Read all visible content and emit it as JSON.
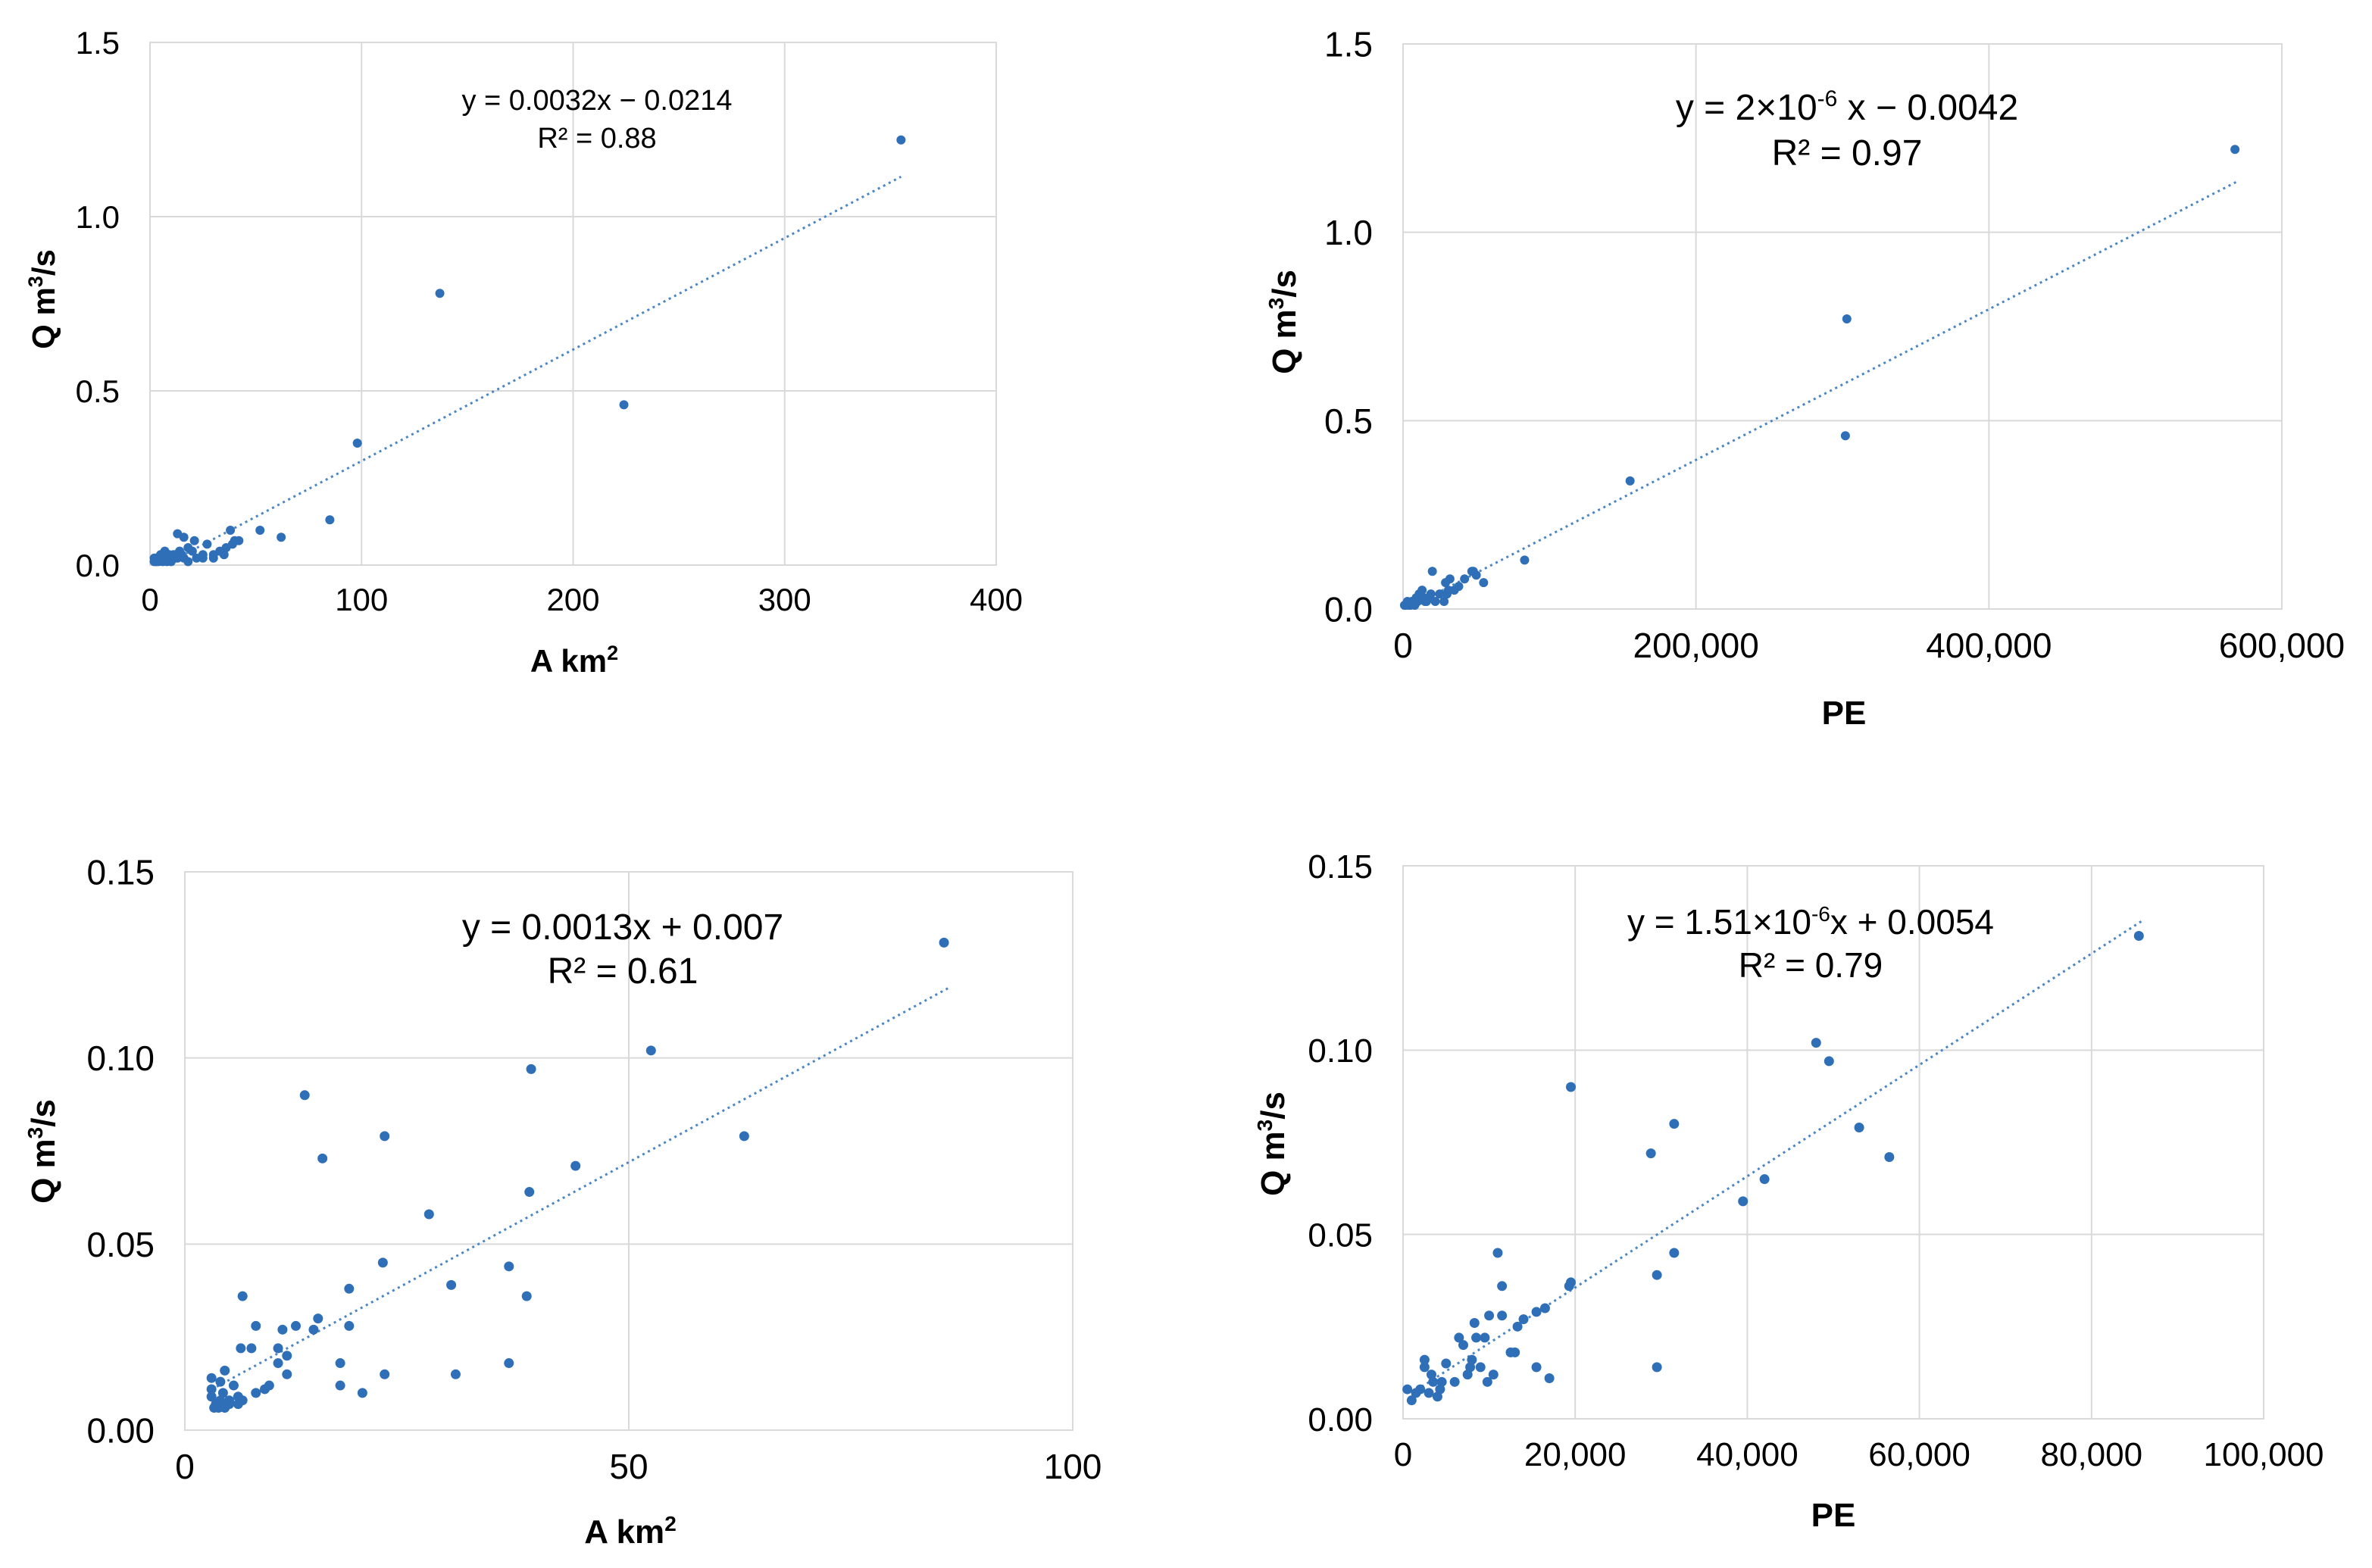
{
  "chart_data": [
    {
      "type": "scatter",
      "id": "c1",
      "xlabel": "A km",
      "xlabel_sup": "2",
      "ylabel": "Q m",
      "ylabel_sup": "3",
      "ylabel_tail": "/s",
      "xlim": [
        0,
        400
      ],
      "ylim": [
        0,
        1.5
      ],
      "x_ticks": [
        0,
        100,
        200,
        300,
        400
      ],
      "x_tick_labels": [
        "0",
        "100",
        "200",
        "300",
        "400"
      ],
      "y_ticks": [
        0,
        0.5,
        1.0,
        1.5
      ],
      "y_tick_labels": [
        "0.0",
        "0.5",
        "1.0",
        "1.5"
      ],
      "equation": "y = 0.0032x − 0.0214",
      "r2": "R² = 0.88",
      "trendline": {
        "slope": 0.0032,
        "intercept": -0.0214,
        "x_range": [
          7,
          355
        ]
      },
      "x": [
        355,
        137,
        224,
        98,
        85,
        62,
        52,
        40,
        38,
        36,
        33,
        30,
        27,
        25,
        22,
        20,
        18,
        16,
        15,
        14,
        13,
        12,
        11,
        10,
        9,
        8,
        7,
        6,
        5,
        4,
        3,
        3,
        2,
        2,
        13,
        16,
        21,
        39,
        42,
        30,
        18,
        12,
        8,
        5,
        4,
        3,
        6,
        10,
        25,
        35
      ],
      "y": [
        1.22,
        0.78,
        0.46,
        0.35,
        0.13,
        0.08,
        0.1,
        0.07,
        0.1,
        0.05,
        0.04,
        0.02,
        0.06,
        0.03,
        0.02,
        0.04,
        0.05,
        0.02,
        0.03,
        0.04,
        0.09,
        0.02,
        0.03,
        0.02,
        0.03,
        0.02,
        0.04,
        0.02,
        0.02,
        0.01,
        0.02,
        0.01,
        0.02,
        0.01,
        0.02,
        0.08,
        0.07,
        0.06,
        0.07,
        0.03,
        0.01,
        0.03,
        0.01,
        0.03,
        0.02,
        0.01,
        0.01,
        0.01,
        0.02,
        0.03
      ]
    },
    {
      "type": "scatter",
      "id": "c2",
      "xlabel": "PE",
      "xlabel_sup": "",
      "ylabel": "Q m",
      "ylabel_sup": "3",
      "ylabel_tail": "/s",
      "xlim": [
        0,
        600000
      ],
      "ylim": [
        0,
        1.5
      ],
      "x_ticks": [
        0,
        200000,
        400000,
        600000
      ],
      "x_tick_labels": [
        "0",
        "200,000",
        "400,000",
        "600,000"
      ],
      "y_ticks": [
        0,
        0.5,
        1.0,
        1.5
      ],
      "y_tick_labels": [
        "0.0",
        "0.5",
        "1.0",
        "1.5"
      ],
      "equation": "y = 2×10",
      "equation_sup": "-6",
      "equation_tail": " x − 0.0042",
      "r2": "R² = 0.97",
      "trendline": {
        "slope": 2e-06,
        "intercept": -0.0042,
        "x_range": [
          8000,
          570000
        ]
      },
      "x": [
        568000,
        303000,
        302000,
        155000,
        83000,
        55000,
        50000,
        48000,
        42000,
        38000,
        35000,
        32000,
        30000,
        28000,
        25000,
        22000,
        20000,
        19000,
        17000,
        15000,
        13000,
        12000,
        11000,
        10000,
        9000,
        8000,
        7000,
        6000,
        5000,
        4000,
        3000,
        2000,
        1000,
        14000,
        16000,
        29000,
        31000,
        47000
      ],
      "y": [
        1.22,
        0.77,
        0.46,
        0.34,
        0.13,
        0.07,
        0.09,
        0.1,
        0.08,
        0.06,
        0.05,
        0.08,
        0.04,
        0.02,
        0.04,
        0.02,
        0.1,
        0.04,
        0.03,
        0.02,
        0.05,
        0.03,
        0.04,
        0.02,
        0.03,
        0.01,
        0.02,
        0.02,
        0.01,
        0.01,
        0.02,
        0.01,
        0.01,
        0.03,
        0.02,
        0.07,
        0.05,
        0.1
      ]
    },
    {
      "type": "scatter",
      "id": "c3",
      "xlabel": "A km",
      "xlabel_sup": "2",
      "ylabel": "Q m",
      "ylabel_sup": "3",
      "ylabel_tail": "/s",
      "xlim": [
        0,
        100
      ],
      "ylim": [
        0,
        0.15
      ],
      "x_ticks": [
        0,
        50,
        100
      ],
      "x_tick_labels": [
        "0",
        "50",
        "100"
      ],
      "y_ticks": [
        0,
        0.05,
        0.1,
        0.15
      ],
      "y_tick_labels": [
        "0.00",
        "0.05",
        "0.10",
        "0.15"
      ],
      "equation": "y = 0.0013x + 0.007",
      "r2": "R² = 0.61",
      "trendline": {
        "slope": 0.0013,
        "intercept": 0.007,
        "x_range": [
          3,
          86
        ]
      },
      "x": [
        85.5,
        52.5,
        63,
        39,
        44,
        38.8,
        36.5,
        38.5,
        30,
        30.5,
        36.5,
        27.5,
        22.5,
        22.3,
        22.5,
        20,
        18.5,
        18.5,
        17.5,
        17.5,
        15.5,
        15,
        14.5,
        13.5,
        12.5,
        11.5,
        11.5,
        11,
        10.5,
        10.5,
        9.5,
        9,
        8,
        8,
        7.5,
        6.5,
        6.3,
        6,
        6,
        5.5,
        5,
        4.5,
        4.3,
        4,
        4,
        3.8,
        3.5,
        3.3,
        3,
        3,
        3,
        6.5,
        5,
        4.5
      ],
      "y": [
        0.131,
        0.102,
        0.079,
        0.097,
        0.071,
        0.064,
        0.044,
        0.036,
        0.039,
        0.015,
        0.018,
        0.058,
        0.079,
        0.045,
        0.015,
        0.01,
        0.038,
        0.028,
        0.018,
        0.012,
        0.073,
        0.03,
        0.027,
        0.09,
        0.028,
        0.02,
        0.015,
        0.027,
        0.022,
        0.018,
        0.012,
        0.011,
        0.028,
        0.01,
        0.022,
        0.036,
        0.022,
        0.009,
        0.007,
        0.012,
        0.008,
        0.016,
        0.01,
        0.013,
        0.008,
        0.006,
        0.007,
        0.006,
        0.011,
        0.009,
        0.014,
        0.008,
        0.007,
        0.006
      ]
    },
    {
      "type": "scatter",
      "id": "c4",
      "xlabel": "PE",
      "xlabel_sup": "",
      "ylabel": "Q m",
      "ylabel_sup": "3",
      "ylabel_tail": "/s",
      "xlim": [
        0,
        100000
      ],
      "ylim": [
        0,
        0.15
      ],
      "x_ticks": [
        0,
        20000,
        40000,
        60000,
        80000,
        100000
      ],
      "x_tick_labels": [
        "0",
        "20,000",
        "40,000",
        "60,000",
        "80,000",
        "100,000"
      ],
      "y_ticks": [
        0,
        0.05,
        0.1,
        0.15
      ],
      "y_tick_labels": [
        "0.00",
        "0.05",
        "0.10",
        "0.15"
      ],
      "equation": "y = 1.51×10",
      "equation_sup": "-6",
      "equation_tail": "x + 0.0054",
      "r2": "R² = 0.79",
      "trendline": {
        "slope": 1.51e-06,
        "intercept": 0.0054,
        "x_range": [
          1000,
          86000
        ]
      },
      "x": [
        85500,
        48000,
        49500,
        19500,
        53000,
        56500,
        42000,
        39500,
        31500,
        28800,
        31500,
        29500,
        29500,
        19500,
        19300,
        16500,
        15500,
        14000,
        13300,
        13000,
        12500,
        11500,
        11500,
        11000,
        10500,
        10000,
        9800,
        9500,
        9000,
        8500,
        8300,
        8000,
        7800,
        7500,
        7000,
        6500,
        6000,
        5000,
        4500,
        4300,
        4000,
        3500,
        3300,
        3000,
        2500,
        2500,
        2000,
        1500,
        1000,
        500,
        17000,
        15500
      ],
      "y": [
        0.131,
        0.102,
        0.097,
        0.09,
        0.079,
        0.071,
        0.065,
        0.059,
        0.08,
        0.072,
        0.045,
        0.039,
        0.014,
        0.037,
        0.036,
        0.03,
        0.029,
        0.027,
        0.025,
        0.018,
        0.018,
        0.036,
        0.028,
        0.045,
        0.012,
        0.028,
        0.01,
        0.022,
        0.014,
        0.022,
        0.026,
        0.016,
        0.014,
        0.012,
        0.02,
        0.022,
        0.01,
        0.015,
        0.01,
        0.008,
        0.006,
        0.01,
        0.012,
        0.007,
        0.014,
        0.016,
        0.008,
        0.007,
        0.005,
        0.008,
        0.011,
        0.014
      ]
    }
  ]
}
